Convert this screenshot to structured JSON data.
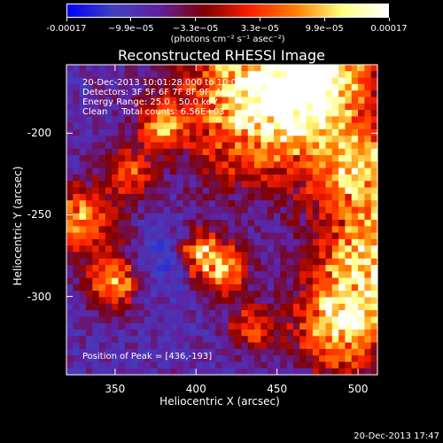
{
  "colorbar": {
    "labels": [
      "-0.00017",
      "−9.9e−05",
      "−3.3e−05",
      "3.3e−05",
      "9.9e−05",
      "0.00017"
    ],
    "unit": "(photons cm⁻² s⁻¹ asec⁻²)"
  },
  "chart_data": {
    "type": "heatmap",
    "title": "Reconstructed RHESSI Image",
    "xlabel": "Heliocentric X (arcsec)",
    "ylabel": "Heliocentric Y (arcsec)",
    "xlim": [
      320,
      512
    ],
    "ylim": [
      -348,
      -158
    ],
    "xticks": [
      "350",
      "400",
      "450",
      "500"
    ],
    "yticks": [
      "-200",
      "-250",
      "-300"
    ],
    "xtick_values": [
      350,
      400,
      450,
      500
    ],
    "ytick_values": [
      -200,
      -250,
      -300
    ],
    "colormap": [
      "#0000ff",
      "#4040c0",
      "#6020a0",
      "#800000",
      "#ff2000",
      "#ff8000",
      "#ffff80",
      "#ffffff"
    ],
    "value_range": [
      -0.00017,
      0.00017
    ],
    "peak": [
      436,
      -193
    ]
  },
  "annotations": {
    "line1": "20-Dec-2013 10:01:28.000 to 10:05:28.000",
    "line2": "Detectors: 3F 5F 6F 7F 8F 9F, Att 0",
    "line3": "Energy Range: 25.0 - 50.0 keV",
    "line4": "Clean     Total counts: 6.56E+03",
    "peak": "Position of Peak = [436,-193]"
  },
  "timestamp": "20-Dec-2013 17:47"
}
